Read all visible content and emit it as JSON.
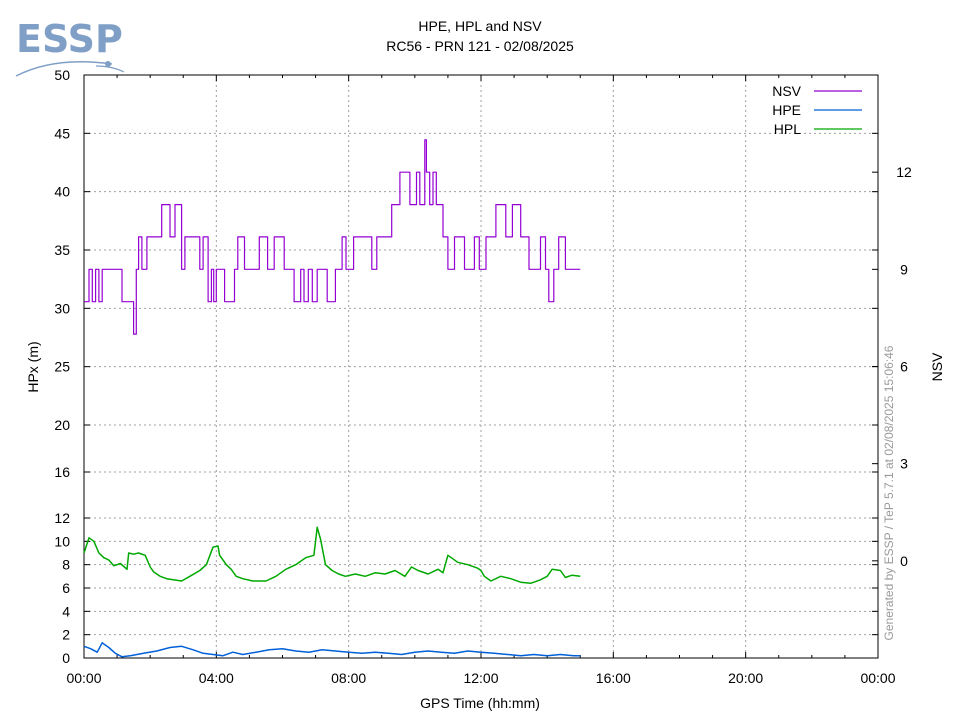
{
  "logo": {
    "text": "ESSP"
  },
  "title_line1": "HPE, HPL and NSV",
  "title_line2": "RC56 - PRN 121 - 02/08/2025",
  "credit": "Generated by ESSP / TeP 5.7.1 at 02/08/2025 15:06:46",
  "chart_data": {
    "type": "line",
    "title": "HPE, HPL and NSV",
    "subtitle": "RC56 - PRN 121 - 02/08/2025",
    "xlabel": "GPS Time (hh:mm)",
    "ylabel": "HPx (m)",
    "y2label": "NSV",
    "x_range_hours": [
      0,
      24
    ],
    "x_ticks": [
      "00:00",
      "04:00",
      "08:00",
      "12:00",
      "16:00",
      "20:00",
      "00:00"
    ],
    "y_scale": "piecewise-linear (0-12 and 12-16 segments expanded, 20-50 compressed)",
    "y_ticks": [
      0,
      2,
      4,
      6,
      8,
      10,
      12,
      16,
      20,
      25,
      30,
      35,
      40,
      45,
      50
    ],
    "y2_range": [
      -3,
      15
    ],
    "y2_ticks": [
      0,
      3,
      6,
      9,
      12
    ],
    "grid": true,
    "legend_position": "top-right",
    "legend": [
      "NSV",
      "HPE",
      "HPL"
    ],
    "colors": {
      "NSV": "#9400d3",
      "HPE": "#0060d8",
      "HPL": "#00a800"
    },
    "series": [
      {
        "name": "NSV",
        "axis": "y2",
        "step": true,
        "x": [
          0,
          0.15,
          0.25,
          0.35,
          0.45,
          0.55,
          1.15,
          1.5,
          1.58,
          1.65,
          1.75,
          1.9,
          2.35,
          2.6,
          2.75,
          2.95,
          3.05,
          3.5,
          3.6,
          3.75,
          3.85,
          3.92,
          4.0,
          4.25,
          4.55,
          4.65,
          4.85,
          5.3,
          5.55,
          5.75,
          6.05,
          6.35,
          6.55,
          6.65,
          6.78,
          6.9,
          7.05,
          7.35,
          7.6,
          7.8,
          7.92,
          8.15,
          8.7,
          8.85,
          9.3,
          9.55,
          9.85,
          10.05,
          10.15,
          10.3,
          10.35,
          10.45,
          10.55,
          10.65,
          10.75,
          10.85,
          11.0,
          11.2,
          11.5,
          11.8,
          11.95,
          12.15,
          12.45,
          12.75,
          12.95,
          13.2,
          13.45,
          13.8,
          13.95,
          14.05,
          14.2,
          14.35,
          14.55,
          14.8,
          15.0
        ],
        "values": [
          8,
          9,
          8,
          9,
          8,
          9,
          8,
          7,
          9,
          10,
          9,
          10,
          11,
          10,
          11,
          9,
          10,
          9,
          10,
          8,
          9,
          8,
          9,
          8,
          9,
          10,
          9,
          10,
          9,
          10,
          9,
          8,
          9,
          8,
          9,
          8,
          9,
          8,
          9,
          10,
          9,
          10,
          9,
          10,
          11,
          12,
          11,
          12,
          11,
          13,
          12,
          11,
          12,
          11,
          11,
          10,
          9,
          10,
          9,
          10,
          9,
          10,
          11,
          10,
          11,
          10,
          9,
          10,
          9,
          8,
          9,
          10,
          9,
          9,
          9
        ]
      },
      {
        "name": "HPE",
        "axis": "y",
        "x": [
          0,
          0.2,
          0.4,
          0.55,
          0.75,
          0.95,
          1.15,
          1.4,
          1.8,
          2.2,
          2.6,
          2.95,
          3.3,
          3.6,
          3.9,
          4.2,
          4.5,
          4.8,
          5.2,
          5.6,
          6.0,
          6.4,
          6.8,
          7.2,
          7.6,
          8.0,
          8.4,
          8.8,
          9.2,
          9.6,
          10.0,
          10.4,
          10.8,
          11.2,
          11.6,
          12.0,
          12.4,
          12.8,
          13.2,
          13.6,
          14.0,
          14.4,
          14.8,
          15.0
        ],
        "values": [
          1.0,
          0.8,
          0.5,
          1.3,
          0.9,
          0.4,
          0.1,
          0.2,
          0.4,
          0.6,
          0.9,
          1.0,
          0.7,
          0.4,
          0.3,
          0.2,
          0.5,
          0.3,
          0.5,
          0.7,
          0.8,
          0.6,
          0.5,
          0.7,
          0.6,
          0.5,
          0.4,
          0.5,
          0.4,
          0.3,
          0.5,
          0.6,
          0.5,
          0.4,
          0.6,
          0.5,
          0.4,
          0.3,
          0.2,
          0.3,
          0.2,
          0.3,
          0.2,
          0.2
        ]
      },
      {
        "name": "HPL",
        "axis": "y",
        "x": [
          0,
          0.15,
          0.3,
          0.45,
          0.6,
          0.75,
          0.9,
          1.1,
          1.3,
          1.35,
          1.5,
          1.65,
          1.85,
          2.0,
          2.1,
          2.3,
          2.5,
          2.7,
          2.95,
          3.2,
          3.5,
          3.7,
          3.9,
          4.05,
          4.1,
          4.2,
          4.3,
          4.45,
          4.6,
          4.8,
          5.1,
          5.5,
          5.8,
          6.1,
          6.4,
          6.7,
          6.95,
          7.05,
          7.15,
          7.3,
          7.5,
          7.7,
          7.9,
          8.2,
          8.5,
          8.8,
          9.1,
          9.4,
          9.7,
          9.9,
          10.1,
          10.4,
          10.7,
          10.85,
          11.0,
          11.3,
          11.6,
          11.9,
          12.0,
          12.1,
          12.3,
          12.6,
          12.9,
          13.2,
          13.5,
          13.8,
          14.0,
          14.15,
          14.4,
          14.55,
          14.75,
          15.0
        ],
        "values": [
          9.0,
          10.3,
          10.0,
          9.0,
          8.6,
          8.4,
          7.9,
          8.1,
          7.6,
          9.0,
          8.9,
          9.0,
          8.8,
          7.8,
          7.4,
          7.0,
          6.8,
          6.7,
          6.6,
          7.0,
          7.5,
          8.0,
          9.5,
          9.6,
          8.8,
          8.4,
          8.0,
          7.6,
          7.0,
          6.8,
          6.6,
          6.6,
          7.0,
          7.6,
          8.0,
          8.6,
          8.8,
          11.2,
          10.2,
          8.0,
          7.5,
          7.2,
          7.0,
          7.2,
          7.0,
          7.3,
          7.2,
          7.5,
          7.0,
          7.8,
          7.5,
          7.2,
          7.6,
          7.3,
          8.8,
          8.2,
          8.0,
          7.7,
          7.5,
          7.0,
          6.6,
          7.0,
          6.8,
          6.5,
          6.4,
          6.7,
          7.0,
          7.6,
          7.5,
          6.9,
          7.1,
          7.0
        ]
      }
    ]
  }
}
